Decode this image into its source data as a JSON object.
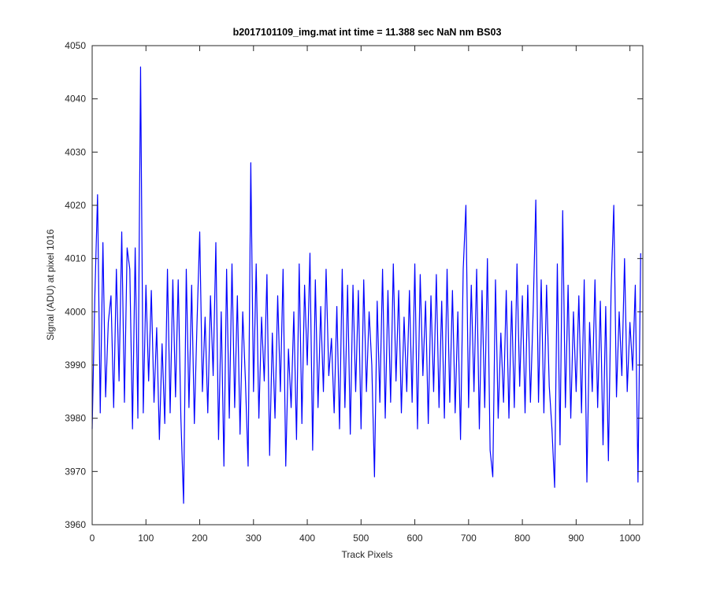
{
  "chart_data": {
    "type": "line",
    "title": "b2017101109_img.mat int time = 11.388 sec  NaN nm BS03",
    "x_label": "Track Pixels",
    "y_label": "Signal (ADU) at pixel 1016",
    "x": [
      0,
      5,
      10,
      15,
      20,
      25,
      30,
      35,
      40,
      45,
      50,
      55,
      60,
      65,
      70,
      75,
      80,
      85,
      90,
      95,
      100,
      105,
      110,
      115,
      120,
      125,
      130,
      135,
      140,
      145,
      150,
      155,
      160,
      165,
      170,
      175,
      180,
      185,
      190,
      195,
      200,
      205,
      210,
      215,
      220,
      225,
      230,
      235,
      240,
      245,
      250,
      255,
      260,
      265,
      270,
      275,
      280,
      285,
      290,
      295,
      300,
      305,
      310,
      315,
      320,
      325,
      330,
      335,
      340,
      345,
      350,
      355,
      360,
      365,
      370,
      375,
      380,
      385,
      390,
      395,
      400,
      405,
      410,
      415,
      420,
      425,
      430,
      435,
      440,
      445,
      450,
      455,
      460,
      465,
      470,
      475,
      480,
      485,
      490,
      495,
      500,
      505,
      510,
      515,
      520,
      525,
      530,
      535,
      540,
      545,
      550,
      555,
      560,
      565,
      570,
      575,
      580,
      585,
      590,
      595,
      600,
      605,
      610,
      615,
      620,
      625,
      630,
      635,
      640,
      645,
      650,
      655,
      660,
      665,
      670,
      675,
      680,
      685,
      690,
      695,
      700,
      705,
      710,
      715,
      720,
      725,
      730,
      735,
      740,
      745,
      750,
      755,
      760,
      765,
      770,
      775,
      780,
      785,
      790,
      795,
      800,
      805,
      810,
      815,
      820,
      825,
      830,
      835,
      840,
      845,
      850,
      855,
      860,
      865,
      870,
      875,
      880,
      885,
      890,
      895,
      900,
      905,
      910,
      915,
      920,
      925,
      930,
      935,
      940,
      945,
      950,
      955,
      960,
      965,
      970,
      975,
      980,
      985,
      990,
      995,
      1000,
      1005,
      1010,
      1015,
      1020
    ],
    "series": [
      {
        "color": "#0000ff",
        "values": [
          3978,
          4003,
          4022,
          3981,
          4013,
          3984,
          3998,
          4003,
          3982,
          4008,
          3987,
          4015,
          3983,
          4012,
          4008,
          3978,
          4012,
          3980,
          4046,
          3981,
          4005,
          3987,
          4004,
          3983,
          3997,
          3976,
          3994,
          3979,
          4008,
          3981,
          4006,
          3984,
          4006,
          3980,
          3964,
          4008,
          3982,
          4005,
          3979,
          3998,
          4015,
          3985,
          3999,
          3981,
          4003,
          3988,
          4013,
          3976,
          4000,
          3971,
          4008,
          3980,
          4009,
          3982,
          4003,
          3977,
          4000,
          3987,
          3971,
          4028,
          3985,
          4009,
          3980,
          3999,
          3987,
          4007,
          3973,
          3996,
          3980,
          4003,
          3985,
          4008,
          3971,
          3993,
          3982,
          4000,
          3976,
          4009,
          3979,
          4005,
          3990,
          4011,
          3974,
          4006,
          3982,
          4001,
          3985,
          4008,
          3988,
          3995,
          3981,
          4001,
          3978,
          4008,
          3982,
          4005,
          3977,
          4005,
          3985,
          4004,
          3978,
          4006,
          3985,
          4000,
          3990,
          3969,
          4002,
          3983,
          4008,
          3980,
          4004,
          3983,
          4009,
          3987,
          4004,
          3981,
          3999,
          3985,
          4004,
          3983,
          4009,
          3978,
          4007,
          3988,
          4002,
          3979,
          4003,
          3985,
          4007,
          3982,
          4002,
          3980,
          4008,
          3983,
          4004,
          3981,
          4000,
          3976,
          4008,
          4020,
          3982,
          4005,
          3985,
          4008,
          3978,
          4004,
          3982,
          4010,
          3974,
          3969,
          4006,
          3980,
          3996,
          3983,
          4004,
          3980,
          4002,
          3982,
          4009,
          3986,
          4003,
          3981,
          4005,
          3983,
          4000,
          4021,
          3983,
          4006,
          3981,
          4005,
          3986,
          3978,
          3967,
          4009,
          3975,
          4019,
          3982,
          4005,
          3980,
          4000,
          3985,
          4003,
          3981,
          4006,
          3968,
          3998,
          3985,
          4006,
          3982,
          4002,
          3975,
          4001,
          3972,
          4004,
          4020,
          3984,
          4000,
          3988,
          4010,
          3985,
          3998,
          3989,
          4005,
          3968,
          4011
        ]
      }
    ],
    "xlim": [
      0,
      1024
    ],
    "xticks": [
      0,
      100,
      200,
      300,
      400,
      500,
      600,
      700,
      800,
      900,
      1000
    ],
    "ylim": [
      3960,
      4050
    ],
    "yticks": [
      3960,
      3970,
      3980,
      3990,
      4000,
      4010,
      4020,
      4030,
      4040,
      4050
    ]
  }
}
